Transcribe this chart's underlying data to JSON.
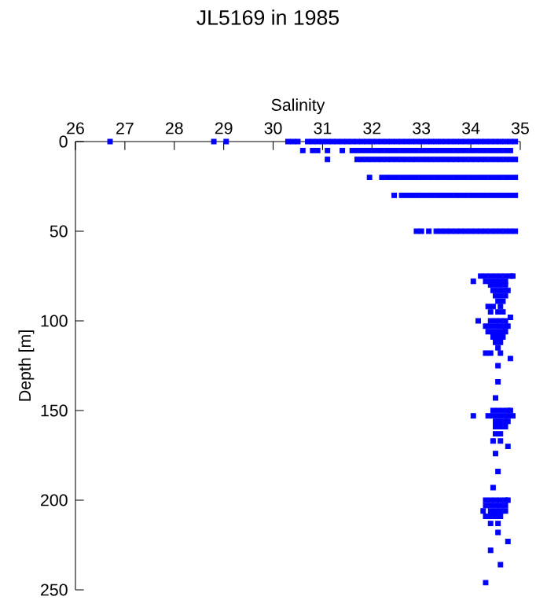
{
  "chart_data": {
    "type": "scatter",
    "title": "JL5169 in 1985",
    "xlabel": "Salinity",
    "ylabel": "Depth [m]",
    "xlim": [
      26,
      35
    ],
    "xticks": [
      26,
      27,
      28,
      29,
      30,
      31,
      32,
      33,
      34,
      35
    ],
    "ylim": [
      250,
      0
    ],
    "yticks": [
      0,
      50,
      100,
      150,
      200,
      250
    ],
    "marker": "square",
    "grid": false,
    "series": [
      {
        "color": "#0000ff",
        "x": [
          26.7,
          28.8,
          29.05,
          30.3,
          30.4,
          30.5,
          30.7,
          30.8,
          30.9,
          31.0,
          31.1,
          31.2,
          31.3,
          31.4,
          31.5,
          31.6,
          31.7,
          31.8,
          31.9,
          32.0,
          32.1,
          32.2,
          32.3,
          32.4,
          32.5,
          32.6,
          32.7,
          32.8,
          32.9,
          33.0,
          33.1,
          33.2,
          33.3,
          33.4,
          33.5,
          33.6,
          33.7,
          33.8,
          33.9,
          34.0,
          34.1,
          34.2,
          34.3,
          34.4,
          34.5,
          34.6,
          34.7,
          34.8,
          34.9
        ],
        "values": [
          0,
          0,
          0,
          0,
          0,
          0,
          0,
          0,
          0,
          0,
          0,
          0,
          0,
          0,
          0,
          0,
          0,
          0,
          0,
          0,
          0,
          0,
          0,
          0,
          0,
          0,
          0,
          0,
          0,
          0,
          0,
          0,
          0,
          0,
          0,
          0,
          0,
          0,
          0,
          0,
          0,
          0,
          0,
          0,
          0,
          0,
          0,
          0,
          0
        ]
      },
      {
        "color": "#0000ff",
        "x": [
          30.6,
          30.8,
          30.9,
          31.1,
          31.4,
          31.6,
          31.7,
          31.8,
          31.9,
          32.0,
          32.1,
          32.2,
          32.3,
          32.4,
          32.5,
          32.6,
          32.7,
          32.8,
          32.9,
          33.0,
          33.1,
          33.2,
          33.3,
          33.4,
          33.5,
          33.6,
          33.7,
          33.8,
          33.9,
          34.0,
          34.1,
          34.2,
          34.3,
          34.4,
          34.5,
          34.6,
          34.7,
          34.8
        ],
        "values": [
          5,
          5,
          5,
          5,
          5,
          5,
          5,
          5,
          5,
          5,
          5,
          5,
          5,
          5,
          5,
          5,
          5,
          5,
          5,
          5,
          5,
          5,
          5,
          5,
          5,
          5,
          5,
          5,
          5,
          5,
          5,
          5,
          5,
          5,
          5,
          5,
          5,
          5
        ]
      },
      {
        "color": "#0000ff",
        "x": [
          31.1,
          31.7,
          31.8,
          31.9,
          32.0,
          32.1,
          32.2,
          32.3,
          32.4,
          32.5,
          32.6,
          32.7,
          32.8,
          32.9,
          33.0,
          33.1,
          33.2,
          33.3,
          33.4,
          33.5,
          33.6,
          33.7,
          33.8,
          33.9,
          34.0,
          34.1,
          34.2,
          34.3,
          34.4,
          34.5,
          34.6,
          34.7,
          34.8,
          34.9
        ],
        "values": [
          10,
          10,
          10,
          10,
          10,
          10,
          10,
          10,
          10,
          10,
          10,
          10,
          10,
          10,
          10,
          10,
          10,
          10,
          10,
          10,
          10,
          10,
          10,
          10,
          10,
          10,
          10,
          10,
          10,
          10,
          10,
          10,
          10,
          10
        ]
      },
      {
        "color": "#0000ff",
        "x": [
          31.95,
          32.2,
          32.3,
          32.4,
          32.5,
          32.6,
          32.7,
          32.8,
          32.9,
          33.0,
          33.1,
          33.2,
          33.3,
          33.4,
          33.5,
          33.6,
          33.7,
          33.8,
          33.9,
          34.0,
          34.1,
          34.2,
          34.3,
          34.4,
          34.5,
          34.6,
          34.7,
          34.8,
          34.9
        ],
        "values": [
          20,
          20,
          20,
          20,
          20,
          20,
          20,
          20,
          20,
          20,
          20,
          20,
          20,
          20,
          20,
          20,
          20,
          20,
          20,
          20,
          20,
          20,
          20,
          20,
          20,
          20,
          20,
          20,
          20
        ]
      },
      {
        "color": "#0000ff",
        "x": [
          32.45,
          32.6,
          32.7,
          32.8,
          32.9,
          33.0,
          33.1,
          33.2,
          33.3,
          33.4,
          33.5,
          33.6,
          33.7,
          33.8,
          33.9,
          34.0,
          34.1,
          34.2,
          34.3,
          34.4,
          34.5,
          34.6,
          34.7,
          34.8,
          34.9
        ],
        "values": [
          30,
          30,
          30,
          30,
          30,
          30,
          30,
          30,
          30,
          30,
          30,
          30,
          30,
          30,
          30,
          30,
          30,
          30,
          30,
          30,
          30,
          30,
          30,
          30,
          30
        ]
      },
      {
        "color": "#0000ff",
        "x": [
          32.9,
          33.0,
          33.15,
          33.3,
          33.4,
          33.5,
          33.6,
          33.7,
          33.8,
          33.9,
          34.0,
          34.1,
          34.2,
          34.3,
          34.4,
          34.5,
          34.6,
          34.7,
          34.8,
          34.9
        ],
        "values": [
          50,
          50,
          50,
          50,
          50,
          50,
          50,
          50,
          50,
          50,
          50,
          50,
          50,
          50,
          50,
          50,
          50,
          50,
          50,
          50
        ]
      },
      {
        "color": "#0000ff",
        "x": [
          34.2,
          34.3,
          34.4,
          34.5,
          34.6,
          34.7,
          34.8,
          34.85,
          34.05,
          34.3,
          34.4,
          34.5,
          34.6,
          34.7,
          34.4,
          34.5,
          34.6,
          34.7,
          34.45,
          34.55,
          34.65,
          34.75,
          34.5,
          34.6,
          34.7,
          34.55,
          34.65,
          34.35,
          34.45,
          34.6,
          34.4,
          34.55,
          34.65,
          34.8,
          34.15,
          34.4,
          34.5,
          34.6,
          34.7,
          34.3,
          34.4,
          34.5,
          34.6,
          34.7,
          34.75,
          34.35,
          34.45,
          34.55,
          34.65,
          34.7,
          34.45,
          34.55,
          34.65,
          34.5,
          34.6,
          34.55,
          34.3,
          34.4,
          34.6,
          34.8,
          34.55,
          34.55,
          34.5,
          34.45,
          34.55,
          34.65,
          34.75,
          34.8,
          34.05,
          34.35,
          34.45,
          34.55,
          34.65,
          34.75,
          34.85,
          34.5,
          34.6,
          34.7,
          34.75,
          34.5,
          34.6,
          34.7,
          34.5,
          34.6,
          34.45,
          34.6,
          34.75,
          34.5,
          34.55,
          34.45,
          34.3,
          34.4,
          34.5,
          34.6,
          34.7,
          34.75,
          34.3,
          34.4,
          34.5,
          34.6,
          34.7,
          34.25,
          34.4,
          34.5,
          34.6,
          34.7,
          34.3,
          34.4,
          34.5,
          34.6,
          34.4,
          34.55,
          34.55,
          34.75,
          34.4,
          34.6,
          34.3
        ],
        "values": [
          75,
          75,
          75,
          75,
          75,
          75,
          75,
          75,
          78,
          78,
          78,
          78,
          78,
          78,
          80,
          80,
          80,
          80,
          83,
          83,
          83,
          83,
          86,
          86,
          86,
          89,
          89,
          92,
          92,
          92,
          95,
          95,
          95,
          98,
          100,
          100,
          100,
          100,
          100,
          103,
          103,
          103,
          103,
          103,
          103,
          106,
          106,
          106,
          106,
          106,
          109,
          109,
          109,
          112,
          112,
          115,
          118,
          118,
          118,
          121,
          125,
          134,
          143,
          150,
          150,
          150,
          150,
          150,
          153,
          153,
          153,
          153,
          153,
          153,
          153,
          156,
          156,
          156,
          156,
          159,
          159,
          159,
          163,
          163,
          167,
          167,
          170,
          174,
          184,
          193,
          200,
          200,
          200,
          200,
          200,
          200,
          203,
          203,
          203,
          203,
          203,
          206,
          206,
          206,
          206,
          206,
          209,
          209,
          209,
          209,
          213,
          213,
          218,
          223,
          228,
          236,
          246
        ]
      }
    ]
  }
}
